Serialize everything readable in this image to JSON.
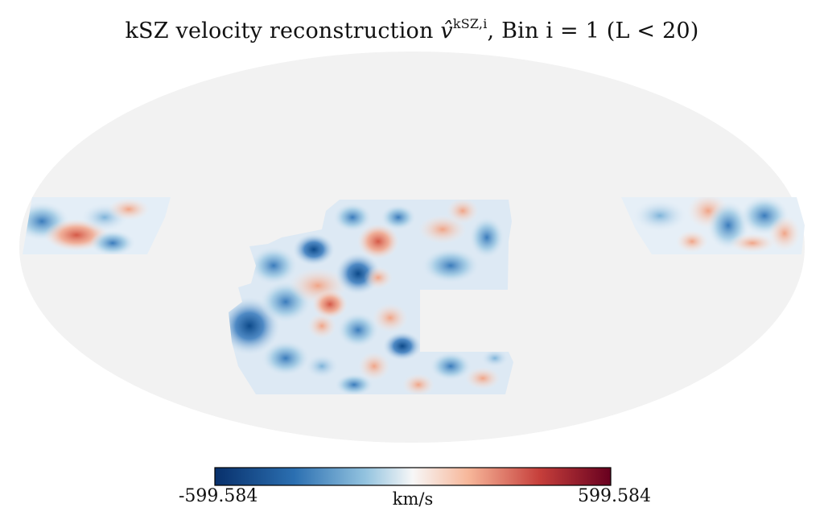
{
  "title": {
    "prefix": "kSZ velocity reconstruction ",
    "symbol": "v̂",
    "superscript": "kSZ,i",
    "suffix": ", Bin i = 1 (L < 20)"
  },
  "colorbar": {
    "min_label": "-599.584",
    "max_label": "599.584",
    "unit_label": "km/s",
    "colormap": "RdBu_r",
    "color_low": "#08306b",
    "color_mid": "#f7f7f7",
    "color_high": "#67001f"
  },
  "map": {
    "projection": "Mollweide",
    "background_color": "#f2f2f2"
  }
}
